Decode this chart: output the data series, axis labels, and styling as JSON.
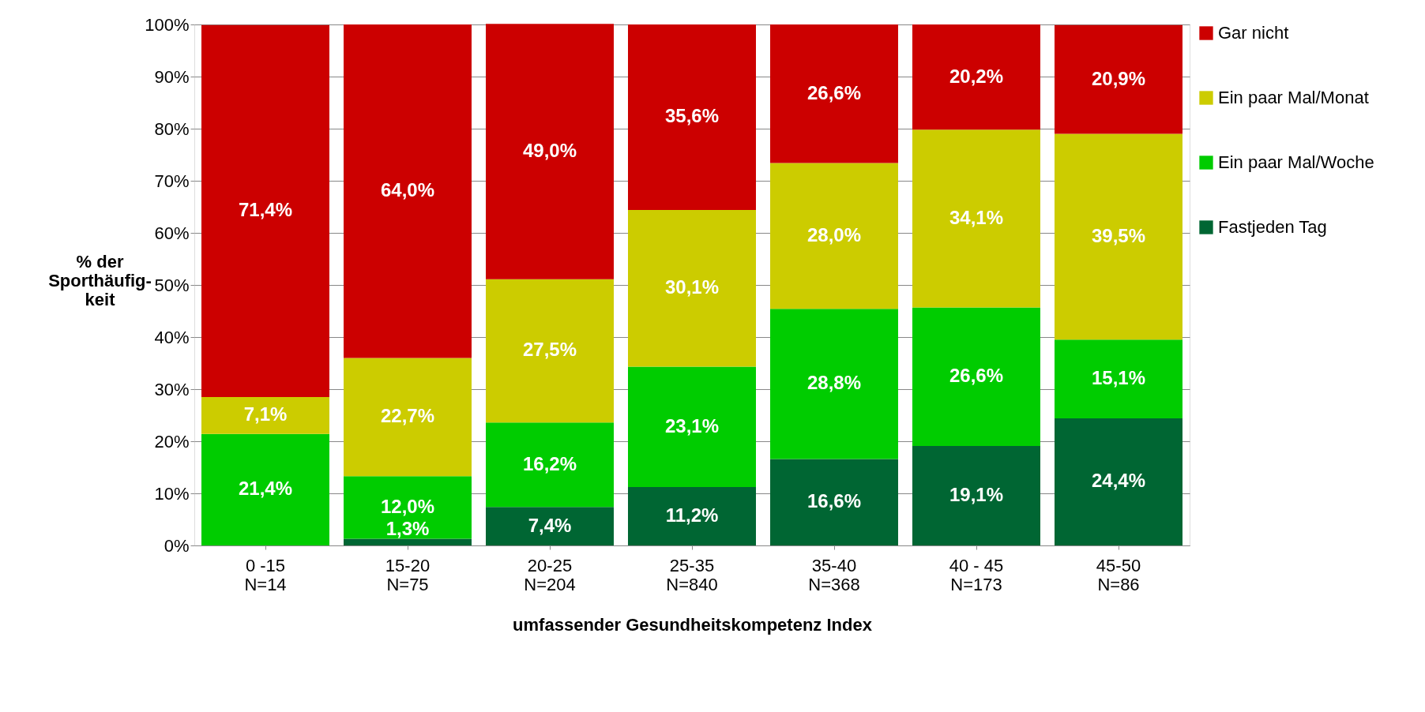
{
  "chart_data": {
    "type": "bar",
    "stacked": true,
    "xlabel": "umfassender Gesundheitskompetenz Index",
    "ylabel": "% der\nSporthäufig-\nkeit",
    "categories": [
      "0 -15\nN=14",
      "15-20\nN=75",
      "20-25\nN=204",
      "25-35\nN=840",
      "35-40\nN=368",
      "40 - 45\nN=173",
      "45-50\nN=86"
    ],
    "series": [
      {
        "name": "Fastjeden Tag",
        "color": "#006633",
        "values": [
          0,
          1.3,
          7.4,
          11.2,
          16.6,
          19.1,
          24.4
        ],
        "value_labels": [
          null,
          "1,3%",
          "7,4%",
          "11,2%",
          "16,6%",
          "19,1%",
          "24,4%"
        ]
      },
      {
        "name": "Ein paar Mal/Woche",
        "color": "#00cc00",
        "values": [
          21.4,
          12.0,
          16.2,
          23.1,
          28.8,
          26.6,
          15.1
        ],
        "value_labels": [
          "21,4%",
          "12,0%",
          "16,2%",
          "23,1%",
          "28,8%",
          "26,6%",
          "15,1%"
        ]
      },
      {
        "name": "Ein paar Mal/Monat",
        "color": "#cccc00",
        "values": [
          7.1,
          22.7,
          27.5,
          30.1,
          28.0,
          34.1,
          39.5
        ],
        "value_labels": [
          "7,1%",
          "22,7%",
          "27,5%",
          "30,1%",
          "28,0%",
          "34,1%",
          "39,5%"
        ]
      },
      {
        "name": "Gar nicht",
        "color": "#cc0000",
        "values": [
          71.4,
          64.0,
          49.0,
          35.6,
          26.6,
          20.2,
          20.9
        ],
        "value_labels": [
          "71,4%",
          "64,0%",
          "49,0%",
          "35,6%",
          "26,6%",
          "20,2%",
          "20,9%"
        ]
      }
    ],
    "ylim": [
      0,
      100
    ],
    "yticks": [
      {
        "value": 0,
        "label": "0%"
      },
      {
        "value": 10,
        "label": "10%"
      },
      {
        "value": 20,
        "label": "20%"
      },
      {
        "value": 30,
        "label": "30%"
      },
      {
        "value": 40,
        "label": "40%"
      },
      {
        "value": 50,
        "label": "50%"
      },
      {
        "value": 60,
        "label": "60%"
      },
      {
        "value": 70,
        "label": "70%"
      },
      {
        "value": 80,
        "label": "80%"
      },
      {
        "value": 90,
        "label": "90%"
      },
      {
        "value": 100,
        "label": "100%"
      }
    ],
    "grid": "y",
    "legend": "right"
  }
}
